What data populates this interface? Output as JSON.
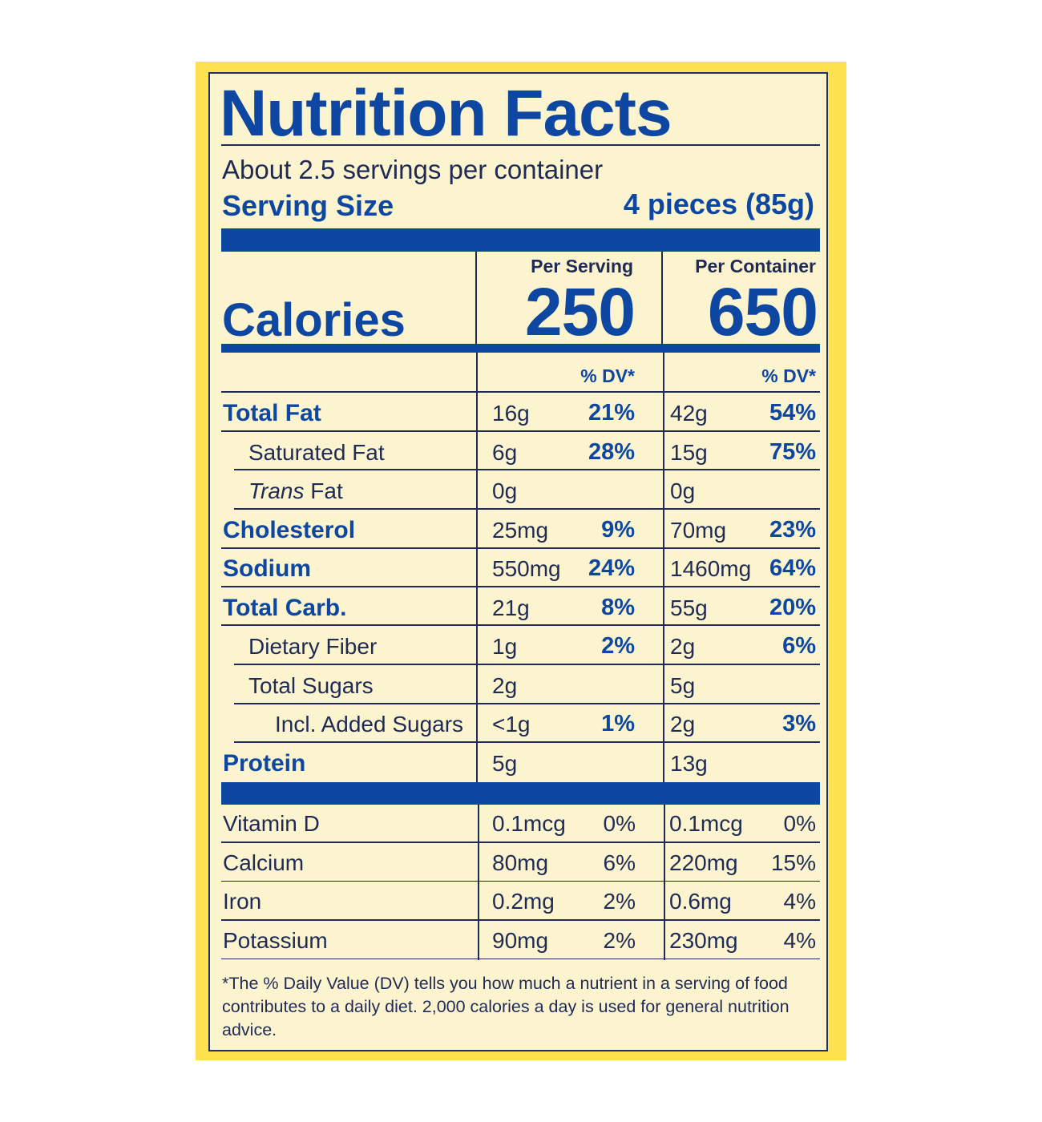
{
  "title": "Nutrition Facts",
  "servings_per_container": "About 2.5 servings per container",
  "serving_size_label": "Serving Size",
  "serving_size_value": "4 pieces (85g)",
  "calories": {
    "label": "Calories",
    "per_serving_label": "Per Serving",
    "per_serving_value": "250",
    "per_container_label": "Per Container",
    "per_container_value": "650"
  },
  "dv_header": "% DV*",
  "nutrients": [
    {
      "name": "Total Fat",
      "serving_amount": "16g",
      "serving_dv": "21%",
      "container_amount": "42g",
      "container_dv": "54%"
    },
    {
      "name": "Saturated Fat",
      "serving_amount": "6g",
      "serving_dv": "28%",
      "container_amount": "15g",
      "container_dv": "75%"
    },
    {
      "name_italic": "Trans",
      "name_rest": " Fat",
      "serving_amount": "0g",
      "serving_dv": "",
      "container_amount": "0g",
      "container_dv": ""
    },
    {
      "name": "Cholesterol",
      "serving_amount": "25mg",
      "serving_dv": "9%",
      "container_amount": "70mg",
      "container_dv": "23%"
    },
    {
      "name": "Sodium",
      "serving_amount": "550mg",
      "serving_dv": "24%",
      "container_amount": "1460mg",
      "container_dv": "64%"
    },
    {
      "name": "Total Carb.",
      "serving_amount": "21g",
      "serving_dv": "8%",
      "container_amount": "55g",
      "container_dv": "20%"
    },
    {
      "name": "Dietary Fiber",
      "serving_amount": "1g",
      "serving_dv": "2%",
      "container_amount": "2g",
      "container_dv": "6%"
    },
    {
      "name": "Total Sugars",
      "serving_amount": "2g",
      "serving_dv": "",
      "container_amount": "5g",
      "container_dv": ""
    },
    {
      "name": "Incl. Added Sugars",
      "serving_amount": "<1g",
      "serving_dv": "1%",
      "container_amount": "2g",
      "container_dv": "3%"
    },
    {
      "name": "Protein",
      "serving_amount": "5g",
      "serving_dv": "",
      "container_amount": "13g",
      "container_dv": ""
    }
  ],
  "vitamins": [
    {
      "name": "Vitamin D",
      "serving_amount": "0.1mcg",
      "serving_dv": "0%",
      "container_amount": "0.1mcg",
      "container_dv": "0%"
    },
    {
      "name": "Calcium",
      "serving_amount": "80mg",
      "serving_dv": "6%",
      "container_amount": "220mg",
      "container_dv": "15%"
    },
    {
      "name": "Iron",
      "serving_amount": "0.2mg",
      "serving_dv": "2%",
      "container_amount": "0.6mg",
      "container_dv": "4%"
    },
    {
      "name": "Potassium",
      "serving_amount": "90mg",
      "serving_dv": "2%",
      "container_amount": "230mg",
      "container_dv": "4%"
    }
  ],
  "footnote": "*The % Daily Value (DV) tells you how much a nutrient in a serving of food contributes to a daily diet. 2,000 calories a day is used for general nutrition advice."
}
